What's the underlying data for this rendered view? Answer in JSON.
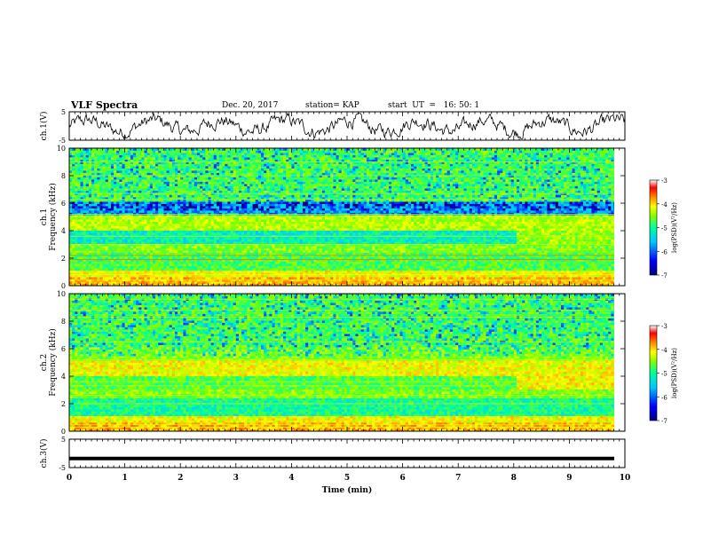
{
  "header": {
    "title": "VLF Spectra",
    "date": "Dec. 20, 2017",
    "station": "station= KAP",
    "start": "start  UT  =   16: 50: 1"
  },
  "chart_data": [
    {
      "type": "line",
      "ylabel": "ch.1(V)",
      "ylim": [
        -5,
        5
      ],
      "yticks": [
        "5",
        "-5"
      ],
      "xlim": [
        0,
        10
      ],
      "description_level": 0.0
    },
    {
      "type": "heatmap",
      "ylabel": "ch.1\nFrequency (kHz)",
      "ylim": [
        0,
        10
      ],
      "yticks": [
        "0",
        "2",
        "4",
        "6",
        "8",
        "10"
      ],
      "xlim": [
        0,
        10
      ],
      "colorbar": {
        "label": "log(PSD)(V²/Hz)",
        "range": [
          -7,
          -3
        ],
        "ticks": [
          "-3",
          "-4",
          "-5",
          "-6",
          "-7"
        ]
      }
    },
    {
      "type": "heatmap",
      "ylabel": "ch.2\nFrequency (kHz)",
      "ylim": [
        0,
        10
      ],
      "yticks": [
        "0",
        "2",
        "4",
        "6",
        "8",
        "10"
      ],
      "xlim": [
        0,
        10
      ],
      "colorbar": {
        "label": "log(PSD)(V²/Hz)",
        "range": [
          -7,
          -3
        ],
        "ticks": [
          "-3",
          "-4",
          "-5",
          "-6",
          "-7"
        ]
      }
    },
    {
      "type": "line",
      "ylabel": "ch.3(V)",
      "ylim": [
        -5,
        5
      ],
      "yticks": [
        "5",
        "-5"
      ],
      "xlim": [
        0,
        10
      ],
      "constant_value": -1.8,
      "xlabel": "Time (min)",
      "xticks": [
        "0",
        "1",
        "2",
        "3",
        "4",
        "5",
        "6",
        "7",
        "8",
        "9",
        "10"
      ]
    }
  ],
  "colors": {
    "colormap": [
      "#000080",
      "#0000ff",
      "#00c8ff",
      "#00ff9f",
      "#7fff00",
      "#ffff00",
      "#ff8c00",
      "#ff0000",
      "#ffffff"
    ]
  }
}
